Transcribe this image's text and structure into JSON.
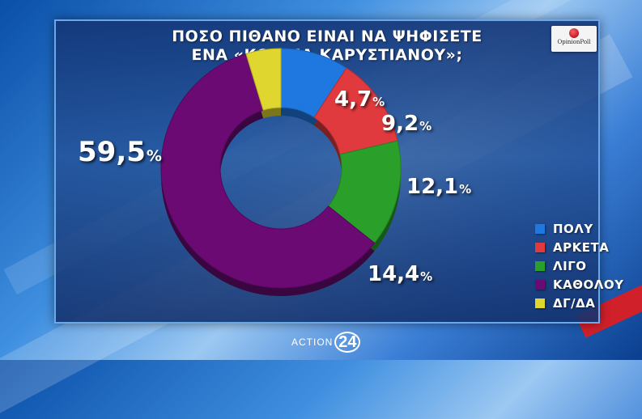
{
  "title": {
    "line1": "ΠΟΣΟ ΠΙΘΑΝΟ ΕΙΝΑΙ ΝΑ ΨΗΦΙΣΕΤΕ",
    "line2": "ΕΝΑ «ΚΟΜΜΑ ΚΑΡΥΣΤΙΑΝΟΥ»;"
  },
  "logo": {
    "text": "OpinionPoll"
  },
  "footer": {
    "brand": "ACTION",
    "number": "24"
  },
  "chart_data": {
    "type": "pie",
    "variant": "donut",
    "title": "ΠΟΣΟ ΠΙΘΑΝΟ ΕΙΝΑΙ ΝΑ ΨΗΦΙΣΕΤΕ ΕΝΑ «ΚΟΜΜΑ ΚΑΡΥΣΤΙΑΝΟΥ»;",
    "legend_position": "bottom-right",
    "slices": [
      {
        "label": "ΠΟΛΥ",
        "value": 9.2,
        "display": "9,2",
        "color": "#1f78e0"
      },
      {
        "label": "ΑΡΚΕΤΑ",
        "value": 12.1,
        "display": "12,1",
        "color": "#e03a3e"
      },
      {
        "label": "ΛΙΓΟ",
        "value": 14.4,
        "display": "14,4",
        "color": "#2aa02a"
      },
      {
        "label": "ΚΑΘΟΛΟΥ",
        "value": 59.5,
        "display": "59,5",
        "color": "#6a0a72"
      },
      {
        "label": "ΔΓ/ΔΑ",
        "value": 4.7,
        "display": "4,7",
        "color": "#e0d630"
      }
    ],
    "percent_symbol": "%"
  }
}
